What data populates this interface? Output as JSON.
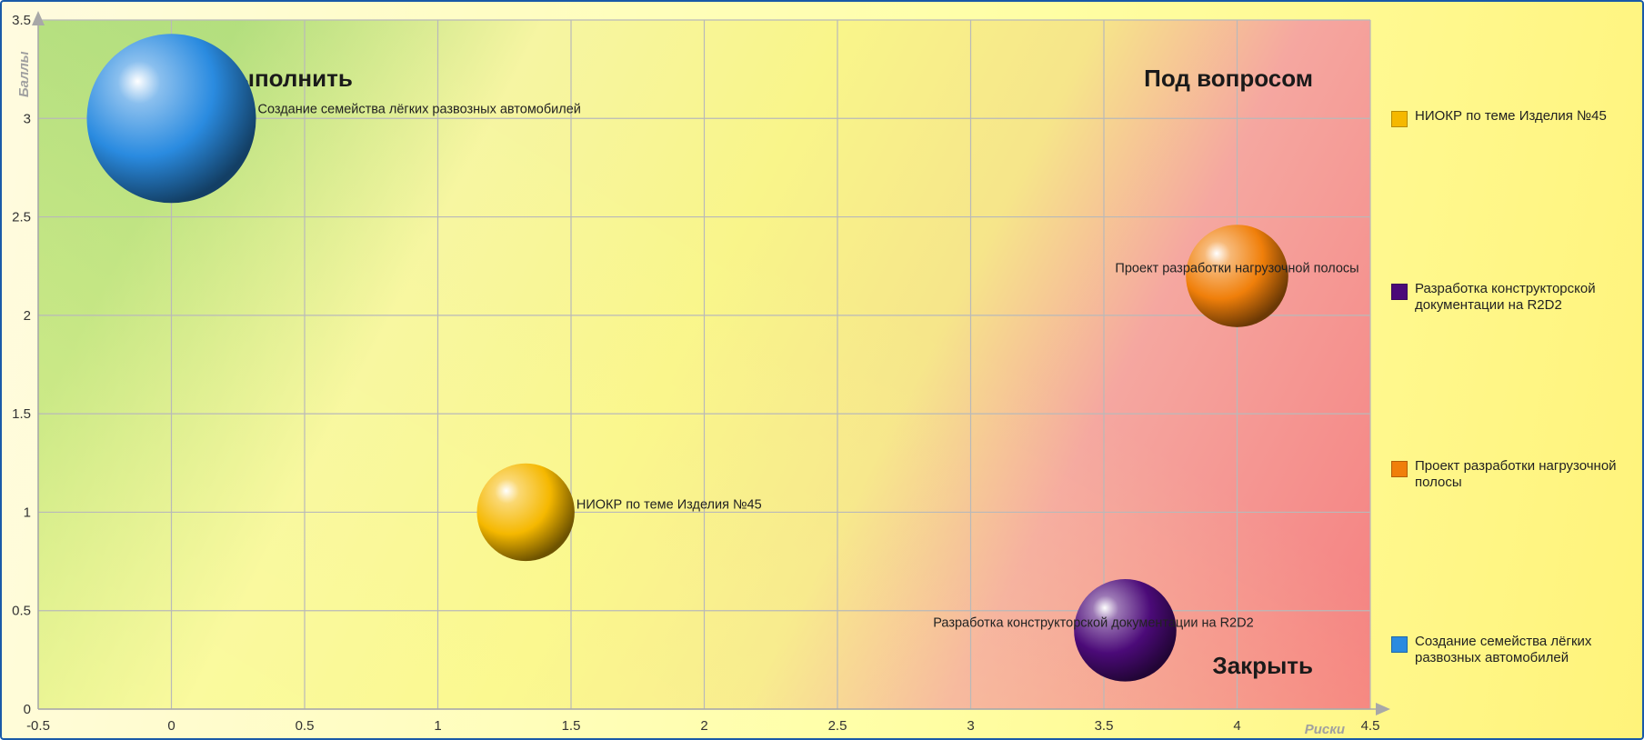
{
  "chart_data": {
    "type": "bubble",
    "xlabel": "Риски",
    "ylabel": "Баллы",
    "xlim": [
      -0.5,
      4.5
    ],
    "ylim": [
      0,
      3.5
    ],
    "x_ticks": [
      "-0.5",
      "0",
      "0.5",
      "1",
      "1.5",
      "2",
      "2.5",
      "3",
      "3.5",
      "4",
      "4.5"
    ],
    "y_ticks": [
      "0",
      "0.5",
      "1",
      "1.5",
      "2",
      "2.5",
      "3",
      "3.5"
    ],
    "grid": true,
    "legend_position": "right",
    "quadrant_labels": {
      "top_left": "Выполнить",
      "top_right": "Под вопросом",
      "bottom_right": "Закрыть"
    },
    "series": [
      {
        "name": "Создание семейства лёгких развозных автомобилей",
        "x": 0.0,
        "y": 3.0,
        "size": 3.0,
        "color": "#2a8be0"
      },
      {
        "name": "НИОКР по теме Изделия №45",
        "x": 1.33,
        "y": 1.0,
        "size": 1.0,
        "color": "#f5b800"
      },
      {
        "name": "Проект разработки нагрузочной полосы",
        "x": 4.0,
        "y": 2.2,
        "size": 1.1,
        "color": "#f07f0a"
      },
      {
        "name": "Разработка конструкторской документации на R2D2",
        "x": 3.58,
        "y": 0.4,
        "size": 1.1,
        "color": "#4b0a78"
      }
    ]
  },
  "legend": {
    "items": [
      {
        "label": "НИОКР по теме Изделия №45",
        "color": "#f5b800"
      },
      {
        "label": "Разработка конструкторской документации на R2D2",
        "color": "#4b0a78"
      },
      {
        "label": "Проект разработки нагрузочной полосы",
        "color": "#f07f0a"
      },
      {
        "label": "Создание семейства лёгких развозных автомобилей",
        "color": "#2a8be0"
      }
    ]
  }
}
